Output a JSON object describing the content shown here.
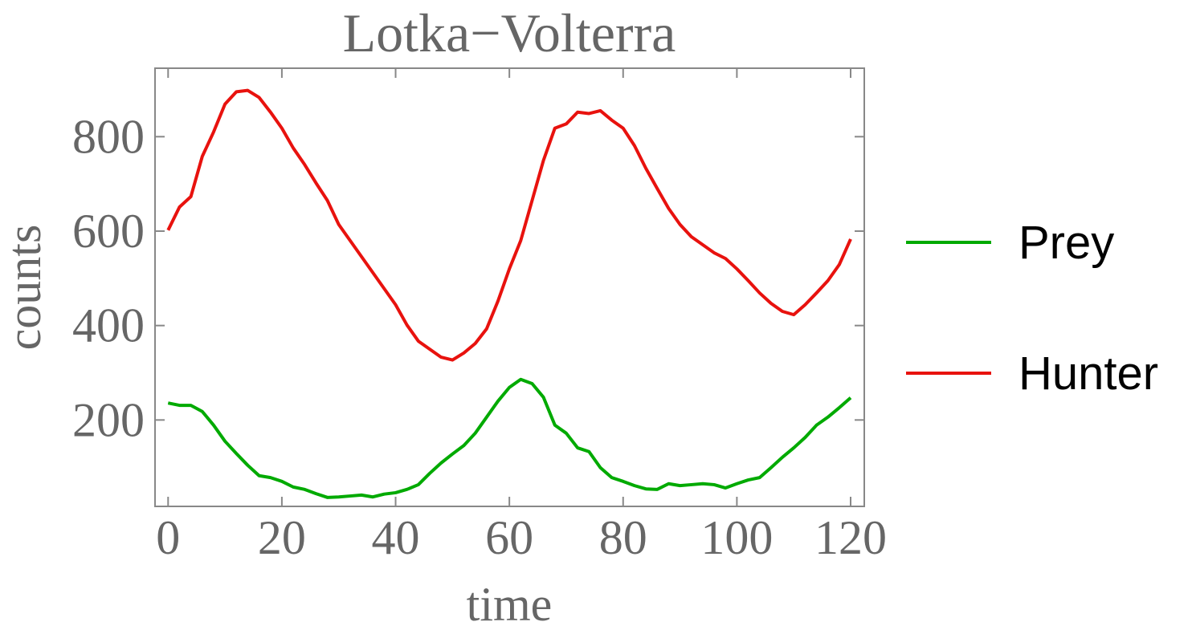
{
  "chart_data": {
    "type": "line",
    "title": "Lotka−Volterra",
    "x_label": "time",
    "y_label": "counts",
    "x": [
      0,
      2,
      4,
      6,
      8,
      10,
      12,
      14,
      16,
      18,
      20,
      22,
      24,
      26,
      28,
      30,
      32,
      34,
      36,
      38,
      40,
      42,
      44,
      46,
      48,
      50,
      52,
      54,
      56,
      58,
      60,
      62,
      64,
      66,
      68,
      70,
      72,
      74,
      76,
      78,
      80,
      82,
      84,
      86,
      88,
      90,
      92,
      94,
      96,
      98,
      100,
      102,
      104,
      106,
      108,
      110,
      112,
      114,
      116,
      118,
      120
    ],
    "series": [
      {
        "name": "Prey",
        "color": "#00aa00",
        "values": [
          236,
          231,
          231,
          218,
          189,
          155,
          129,
          104,
          82,
          78,
          70,
          58,
          53,
          44,
          36,
          37,
          39,
          41,
          37,
          43,
          46,
          53,
          63,
          87,
          109,
          128,
          146,
          172,
          206,
          240,
          269,
          286,
          277,
          248,
          189,
          172,
          141,
          133,
          99,
          78,
          70,
          61,
          54,
          53,
          65,
          61,
          63,
          65,
          63,
          56,
          65,
          73,
          78,
          99,
          121,
          141,
          163,
          189,
          206,
          226,
          247
        ]
      },
      {
        "name": "Hunter",
        "color": "#e8120e",
        "values": [
          602,
          651,
          673,
          758,
          810,
          869,
          895,
          898,
          883,
          852,
          818,
          776,
          741,
          702,
          665,
          614,
          580,
          546,
          512,
          478,
          444,
          401,
          367,
          350,
          333,
          327,
          342,
          362,
          393,
          452,
          520,
          580,
          665,
          750,
          818,
          827,
          852,
          849,
          855,
          835,
          818,
          781,
          733,
          690,
          648,
          614,
          588,
          571,
          554,
          542,
          520,
          495,
          469,
          447,
          430,
          423,
          444,
          469,
          495,
          529,
          583
        ]
      }
    ],
    "xlim": [
      -2.3,
      122.4
    ],
    "ylim": [
      17,
      945
    ],
    "xticks": [
      0,
      20,
      40,
      60,
      80,
      100,
      120
    ],
    "yticks": [
      200,
      400,
      600,
      800
    ],
    "legend": "right"
  }
}
